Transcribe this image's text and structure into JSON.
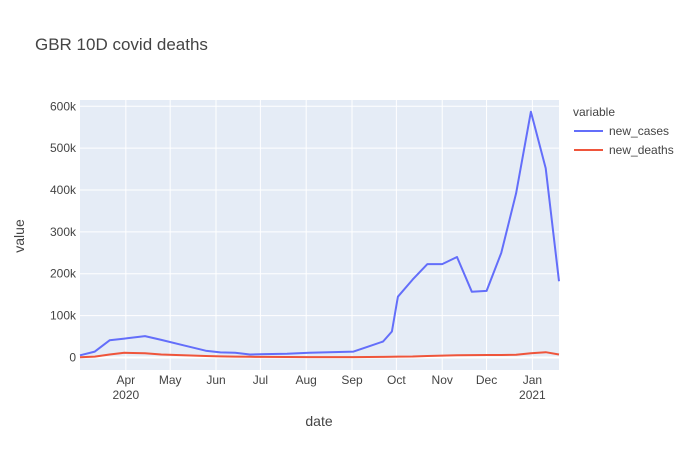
{
  "chart_data": {
    "type": "line",
    "title": "GBR 10D covid deaths",
    "xlabel": "date",
    "ylabel": "value",
    "legend_title": "variable",
    "legend_position": "right",
    "grid": true,
    "x_range": [
      "2020-03-01",
      "2021-01-19"
    ],
    "ylim": [
      -30000,
      615000
    ],
    "y_ticks": [
      0,
      100000,
      200000,
      300000,
      400000,
      500000,
      600000
    ],
    "y_tick_labels": [
      "0",
      "100k",
      "200k",
      "300k",
      "400k",
      "500k",
      "600k"
    ],
    "x_ticks": [
      {
        "date": "2020-04-01",
        "label": "Apr",
        "sublabel": "2020"
      },
      {
        "date": "2020-05-01",
        "label": "May",
        "sublabel": ""
      },
      {
        "date": "2020-06-01",
        "label": "Jun",
        "sublabel": ""
      },
      {
        "date": "2020-07-01",
        "label": "Jul",
        "sublabel": ""
      },
      {
        "date": "2020-08-01",
        "label": "Aug",
        "sublabel": ""
      },
      {
        "date": "2020-09-01",
        "label": "Sep",
        "sublabel": ""
      },
      {
        "date": "2020-10-01",
        "label": "Oct",
        "sublabel": ""
      },
      {
        "date": "2020-11-01",
        "label": "Nov",
        "sublabel": ""
      },
      {
        "date": "2020-12-01",
        "label": "Dec",
        "sublabel": ""
      },
      {
        "date": "2021-01-01",
        "label": "Jan",
        "sublabel": "2021"
      }
    ],
    "x": [
      "2020-03-01",
      "2020-03-11",
      "2020-03-21",
      "2020-03-31",
      "2020-04-14",
      "2020-04-25",
      "2020-05-10",
      "2020-05-25",
      "2020-06-04",
      "2020-06-14",
      "2020-06-24",
      "2020-07-04",
      "2020-07-19",
      "2020-08-03",
      "2020-08-23",
      "2020-09-02",
      "2020-09-12",
      "2020-09-22",
      "2020-09-28",
      "2020-10-02",
      "2020-10-12",
      "2020-10-22",
      "2020-11-01",
      "2020-11-11",
      "2020-11-21",
      "2020-12-01",
      "2020-12-11",
      "2020-12-21",
      "2020-12-31",
      "2021-01-10",
      "2021-01-19"
    ],
    "series": [
      {
        "name": "new_cases",
        "color": "#636efa",
        "values": [
          5000,
          14000,
          41000,
          45000,
          51000,
          42000,
          29000,
          16000,
          12000,
          11000,
          7000,
          8000,
          9000,
          11000,
          13000,
          14000,
          26000,
          38000,
          62000,
          145000,
          186000,
          223000,
          223000,
          240000,
          157000,
          159000,
          250000,
          392000,
          587000,
          452000,
          182000
        ]
      },
      {
        "name": "new_deaths",
        "color": "#ef553b",
        "values": [
          300,
          2000,
          7000,
          11000,
          10000,
          7000,
          5000,
          3500,
          2500,
          2000,
          1500,
          1200,
          1000,
          800,
          800,
          800,
          1000,
          1300,
          1600,
          2000,
          2300,
          3500,
          4500,
          5200,
          5500,
          5800,
          5800,
          6500,
          10000,
          12500,
          7000
        ]
      }
    ]
  }
}
